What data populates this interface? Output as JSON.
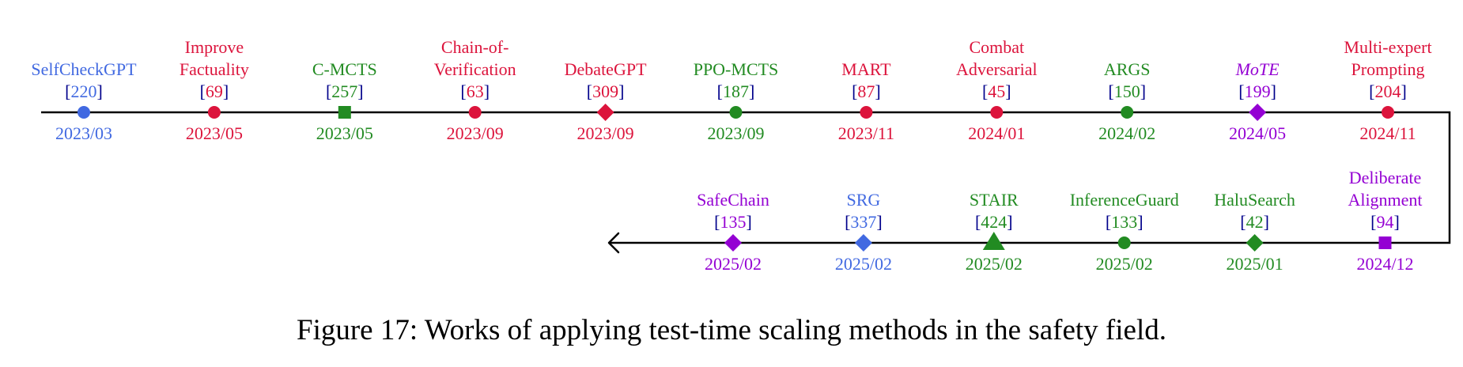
{
  "colors": {
    "red": "#dc143c",
    "blue": "#4169e1",
    "green": "#228b22",
    "purple": "#9400d3",
    "navy": "#00008b",
    "line": "#000000"
  },
  "rows": [
    {
      "direction": "right",
      "items": [
        {
          "name_lines": [
            "SelfCheckGPT"
          ],
          "cite": "220",
          "date": "2023/03",
          "color": "blue",
          "marker": "circle"
        },
        {
          "name_lines": [
            "Improve",
            "Factuality"
          ],
          "cite": "69",
          "date": "2023/05",
          "color": "red",
          "marker": "circle"
        },
        {
          "name_lines": [
            "C-MCTS"
          ],
          "cite": "257",
          "date": "2023/05",
          "color": "green",
          "marker": "square"
        },
        {
          "name_lines": [
            "Chain-of-",
            "Verification"
          ],
          "cite": "63",
          "date": "2023/09",
          "color": "red",
          "marker": "circle"
        },
        {
          "name_lines": [
            "DebateGPT"
          ],
          "cite": "309",
          "date": "2023/09",
          "color": "red",
          "marker": "diamond"
        },
        {
          "name_lines": [
            "PPO-MCTS"
          ],
          "cite": "187",
          "date": "2023/09",
          "color": "green",
          "marker": "circle"
        },
        {
          "name_lines": [
            "MART"
          ],
          "cite": "87",
          "date": "2023/11",
          "color": "red",
          "marker": "circle"
        },
        {
          "name_lines": [
            "Combat",
            "Adversarial"
          ],
          "cite": "45",
          "date": "2024/01",
          "color": "red",
          "marker": "circle"
        },
        {
          "name_lines": [
            "ARGS"
          ],
          "cite": "150",
          "date": "2024/02",
          "color": "green",
          "marker": "circle"
        },
        {
          "name_lines": [
            "MoTE"
          ],
          "cite": "199",
          "date": "2024/05",
          "color": "purple",
          "marker": "diamond",
          "italic": true
        },
        {
          "name_lines": [
            "Multi-expert",
            "Prompting"
          ],
          "cite": "204",
          "date": "2024/11",
          "color": "red",
          "marker": "circle"
        }
      ]
    },
    {
      "direction": "left",
      "items": [
        {
          "name_lines": [
            "SafeChain"
          ],
          "cite": "135",
          "date": "2025/02",
          "color": "purple",
          "marker": "diamond"
        },
        {
          "name_lines": [
            "SRG"
          ],
          "cite": "337",
          "date": "2025/02",
          "color": "blue",
          "marker": "diamond"
        },
        {
          "name_lines": [
            "STAIR"
          ],
          "cite": "424",
          "date": "2025/02",
          "color": "green",
          "marker": "triangle"
        },
        {
          "name_lines": [
            "InferenceGuard"
          ],
          "cite": "133",
          "date": "2025/02",
          "color": "green",
          "marker": "circle"
        },
        {
          "name_lines": [
            "HaluSearch"
          ],
          "cite": "42",
          "date": "2025/01",
          "color": "green",
          "marker": "diamond"
        },
        {
          "name_lines": [
            "Deliberate",
            "Alignment"
          ],
          "cite": "94",
          "date": "2024/12",
          "color": "purple",
          "marker": "square"
        }
      ]
    }
  ],
  "caption": "Figure 17: Works of applying test-time scaling methods in the safety field."
}
